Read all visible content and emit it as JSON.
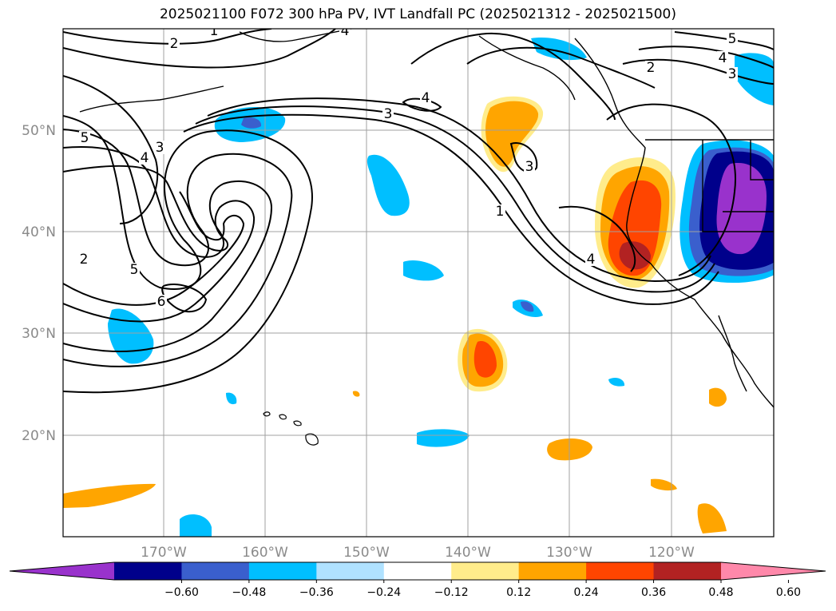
{
  "title": "2025021100 F072 300 hPa PV, IVT Landfall PC (2025021312 - 2025021500)",
  "map": {
    "lat_labels": [
      "50°N",
      "40°N",
      "30°N",
      "20°N"
    ],
    "lon_labels": [
      "170°W",
      "160°W",
      "150°W",
      "140°W",
      "130°W",
      "120°W"
    ],
    "contour_labels": [
      "1",
      "2",
      "4",
      "5",
      "4",
      "3",
      "2",
      "4",
      "3",
      "5",
      "3",
      "4",
      "1",
      "2",
      "5",
      "6",
      "4",
      "3"
    ]
  },
  "colorbar": {
    "colors": [
      "#9932cc",
      "#00008b",
      "#3a5fcd",
      "#00bfff",
      "#b0e2ff",
      "#ffffff",
      "#ffec8b",
      "#ffa500",
      "#ff4500",
      "#b22222",
      "#ff88aa"
    ],
    "tick_labels": [
      "−0.60",
      "−0.48",
      "−0.36",
      "−0.24",
      "−0.12",
      "0.12",
      "0.24",
      "0.36",
      "0.48",
      "0.60"
    ]
  }
}
